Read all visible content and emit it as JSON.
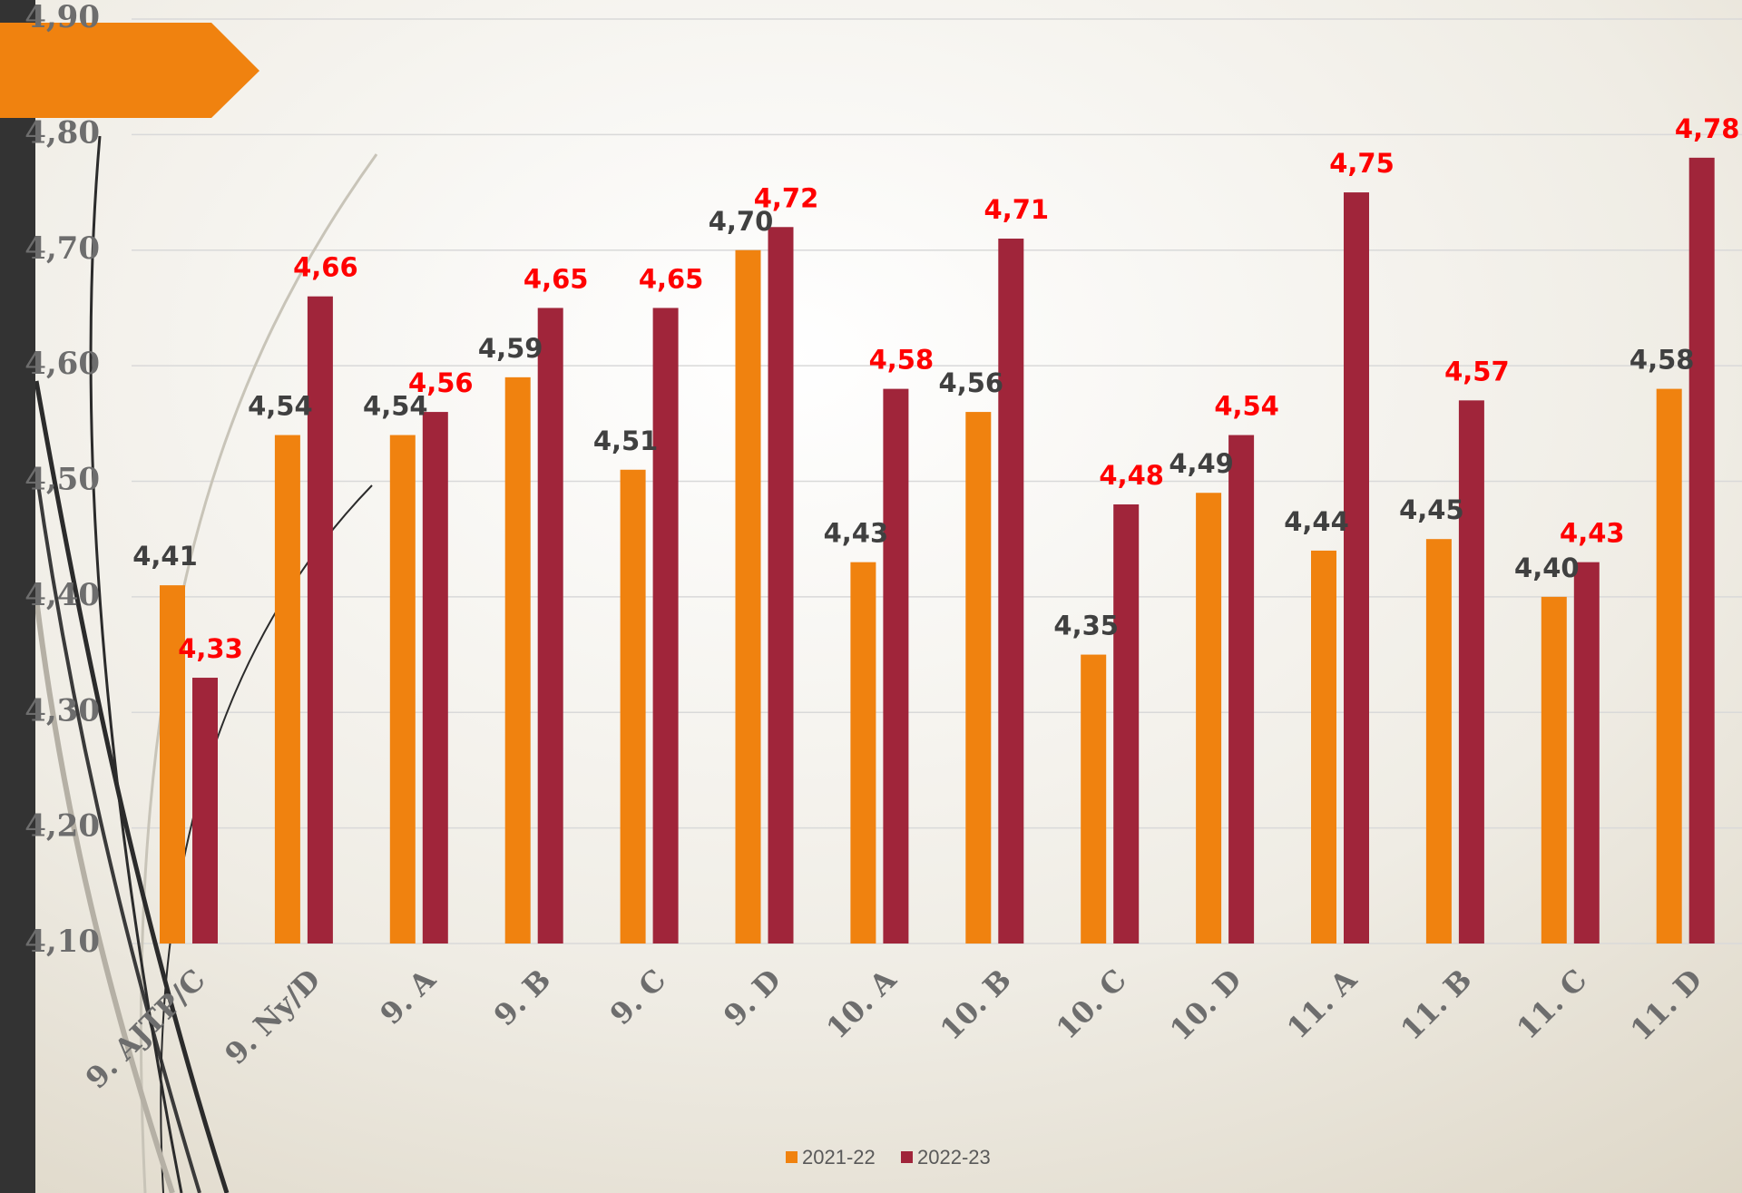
{
  "chart_data": {
    "type": "bar",
    "categories": [
      "9. AJTP/C",
      "9. Ny/D",
      "9. A",
      "9. B",
      "9. C",
      "9. D",
      "10. A",
      "10. B",
      "10. C",
      "10. D",
      "11. A",
      "11. B",
      "11. C",
      "11. D"
    ],
    "series": [
      {
        "name": "2021-22",
        "color": "#f0820f",
        "values": [
          4.41,
          4.54,
          4.54,
          4.59,
          4.51,
          4.7,
          4.43,
          4.56,
          4.35,
          4.49,
          4.44,
          4.45,
          4.4,
          4.58
        ],
        "value_labels": [
          "4,41",
          "4,54",
          "4,54",
          "4,59",
          "4,51",
          "4,70",
          "4,43",
          "4,56",
          "4,35",
          "4,49",
          "4,44",
          "4,45",
          "4,40",
          "4,58"
        ]
      },
      {
        "name": "2022-23",
        "color": "#a0253a",
        "values": [
          4.33,
          4.66,
          4.56,
          4.65,
          4.65,
          4.72,
          4.58,
          4.71,
          4.48,
          4.54,
          4.75,
          4.57,
          4.43,
          4.78
        ],
        "value_labels": [
          "4,33",
          "4,66",
          "4,56",
          "4,65",
          "4,65",
          "4,72",
          "4,58",
          "4,71",
          "4,48",
          "4,54",
          "4,75",
          "4,57",
          "4,43",
          "4,78"
        ]
      }
    ],
    "ylim": [
      4.1,
      4.9
    ],
    "yticks": [
      {
        "value": 4.1,
        "label": "4,10"
      },
      {
        "value": 4.2,
        "label": "4,20"
      },
      {
        "value": 4.3,
        "label": "4,30"
      },
      {
        "value": 4.4,
        "label": "4,40"
      },
      {
        "value": 4.5,
        "label": "4,50"
      },
      {
        "value": 4.6,
        "label": "4,60"
      },
      {
        "value": 4.7,
        "label": "4,70"
      },
      {
        "value": 4.8,
        "label": "4,80"
      },
      {
        "value": 4.9,
        "label": "4,90"
      }
    ],
    "grid": true,
    "legend": "bottom"
  }
}
